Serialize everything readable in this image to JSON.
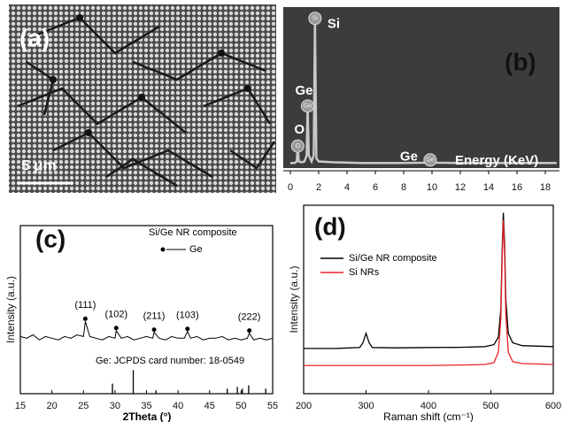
{
  "image_panel": {
    "label": "(a)",
    "scale_bar": "5 μm"
  },
  "chart_data": [
    {
      "type": "eds",
      "panel_label": "(b)",
      "x_label": "Energy (KeV)",
      "xlim": [
        -0.5,
        19
      ],
      "xticks": [
        0,
        2,
        4,
        6,
        8,
        10,
        12,
        14,
        16,
        18
      ],
      "ylim": [
        0,
        100
      ],
      "series": [
        {
          "color": "#c8c8c8",
          "x": [
            0,
            0.3,
            0.45,
            0.52,
            0.6,
            0.8,
            1.0,
            1.15,
            1.22,
            1.3,
            1.5,
            1.65,
            1.74,
            1.84,
            2.0,
            3,
            5,
            8,
            9.7,
            9.87,
            10.05,
            12,
            18.8
          ],
          "values": [
            1,
            1,
            2,
            12,
            2,
            1.5,
            2,
            6,
            38,
            6,
            2,
            6,
            95,
            4,
            2,
            1.5,
            1,
            1,
            1.2,
            3,
            1.2,
            1,
            1
          ]
        }
      ],
      "peaks": [
        {
          "label": "Si",
          "marker": "Si"
        },
        {
          "label": "Ge",
          "marker": "Ge"
        },
        {
          "label": "O",
          "marker": "O"
        },
        {
          "label": "Ge",
          "marker": "Ge"
        }
      ]
    },
    {
      "type": "xrd",
      "panel_label": "(c)",
      "x_label": "2Theta (°)",
      "y_label": "Intensity (a.u.)",
      "xlim": [
        15,
        55
      ],
      "xticks": [
        15,
        20,
        25,
        30,
        35,
        40,
        45,
        50,
        55
      ],
      "ylim": [
        0,
        100
      ],
      "legend": {
        "title": "Si/Ge NR composite",
        "marker_label": "Ge"
      },
      "series": [
        {
          "color": "#000000",
          "x": [
            15,
            16,
            17,
            18,
            19,
            20,
            21,
            22,
            23,
            24,
            25,
            25.3,
            26,
            27,
            28,
            29,
            30,
            30.2,
            31,
            32,
            33,
            34,
            35,
            36,
            36.2,
            37,
            38,
            39,
            40,
            41,
            41.5,
            42,
            43,
            44,
            45,
            46,
            47,
            48,
            49,
            50,
            51,
            51.3,
            52,
            53,
            54,
            55
          ],
          "values": [
            34,
            33,
            35,
            32,
            34,
            33,
            32,
            34,
            33,
            35,
            34,
            43,
            34,
            33,
            32,
            34,
            33,
            37.5,
            33,
            34,
            32,
            33,
            34,
            33,
            36.5,
            33,
            32,
            34,
            33,
            33,
            37,
            33,
            34,
            32,
            33,
            33,
            34,
            32,
            33,
            32,
            33,
            36,
            32,
            33,
            32,
            33
          ]
        }
      ],
      "peak_labels": [
        "(111)",
        "(102)",
        "(211)",
        "(103)",
        "(222)"
      ],
      "reference": {
        "note": "Ge: JCPDS card number: 18-0549",
        "color": "#000000",
        "x": [
          29.6,
          32.9,
          36.5,
          47.8,
          49.4,
          50.2,
          51.2,
          53.9
        ],
        "values": [
          6,
          14,
          2,
          3,
          4,
          3,
          5,
          3
        ]
      }
    },
    {
      "type": "raman",
      "panel_label": "(d)",
      "x_label": "Raman shift (cm⁻¹)",
      "y_label": "Intensity (a.u.)",
      "xlim": [
        200,
        600
      ],
      "xticks": [
        200,
        300,
        400,
        500,
        600
      ],
      "ylim": [
        0,
        100
      ],
      "series": [
        {
          "name": "Si/Ge NR composite",
          "color": "#000000",
          "x": [
            200,
            250,
            290,
            295,
            300,
            305,
            310,
            350,
            400,
            450,
            490,
            505,
            512,
            516,
            518,
            520,
            522,
            524,
            528,
            535,
            550,
            600
          ],
          "values": [
            24,
            24,
            24.5,
            27,
            32,
            27,
            24.5,
            24.3,
            24.5,
            24.6,
            25,
            26,
            30,
            45,
            75,
            96,
            80,
            50,
            32,
            27,
            25.5,
            25
          ]
        },
        {
          "name": "Si NRs",
          "color": "#e8202a",
          "x": [
            200,
            250,
            290,
            295,
            300,
            305,
            310,
            350,
            400,
            450,
            490,
            505,
            512,
            516,
            518,
            520,
            522,
            524,
            528,
            535,
            550,
            600
          ],
          "values": [
            15,
            15,
            15,
            15,
            15,
            15,
            15,
            15,
            15,
            15.2,
            15.5,
            16.5,
            22,
            40,
            70,
            92,
            75,
            42,
            22,
            17,
            16,
            15.5
          ]
        }
      ]
    }
  ]
}
